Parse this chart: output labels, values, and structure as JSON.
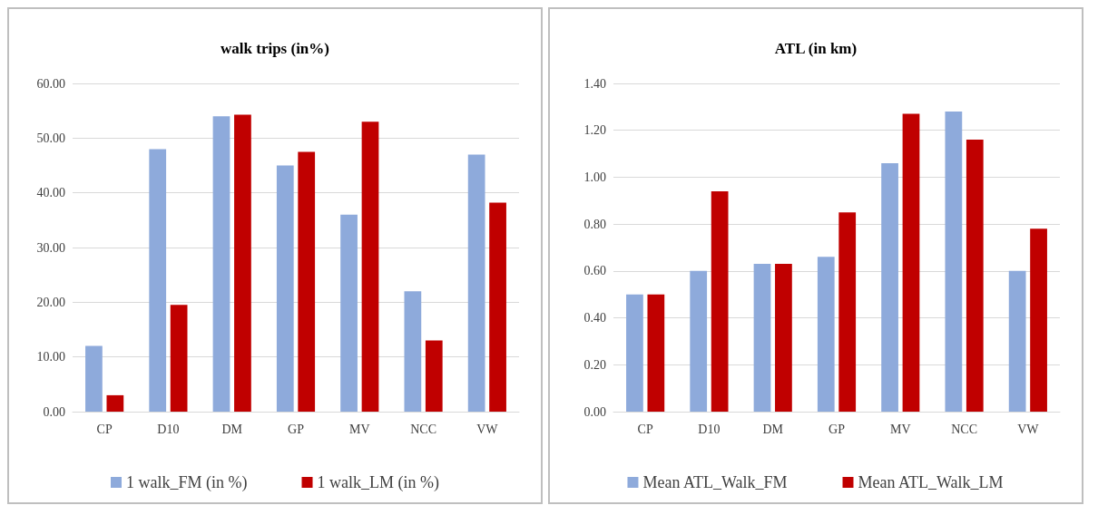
{
  "chart_data": [
    {
      "type": "bar",
      "title": "walk trips (in%)",
      "categories": [
        "CP",
        "D10",
        "DM",
        "GP",
        "MV",
        "NCC",
        "VW"
      ],
      "series": [
        {
          "name": "1 walk_FM (in %)",
          "color": "#8eaadb",
          "values": [
            12,
            48,
            54,
            45,
            36,
            22,
            47
          ]
        },
        {
          "name": "1 walk_LM (in %)",
          "color": "#c00000",
          "values": [
            3,
            19.5,
            54.3,
            47.5,
            53,
            13,
            38.2
          ]
        }
      ],
      "ylim": [
        0,
        60
      ],
      "yticks": [
        {
          "value": 0,
          "label": "0.00"
        },
        {
          "value": 10,
          "label": "10.00"
        },
        {
          "value": 20,
          "label": "20.00"
        },
        {
          "value": 30,
          "label": "30.00"
        },
        {
          "value": 40,
          "label": "40.00"
        },
        {
          "value": 50,
          "label": "50.00"
        },
        {
          "value": 60,
          "label": "60.00"
        }
      ],
      "grid": "y",
      "legend": "bottom"
    },
    {
      "type": "bar",
      "title": "ATL (in km)",
      "categories": [
        "CP",
        "D10",
        "DM",
        "GP",
        "MV",
        "NCC",
        "VW"
      ],
      "series": [
        {
          "name": "Mean ATL_Walk_FM",
          "color": "#8eaadb",
          "values": [
            0.5,
            0.6,
            0.63,
            0.66,
            1.06,
            1.28,
            0.6
          ]
        },
        {
          "name": "Mean ATL_Walk_LM",
          "color": "#c00000",
          "values": [
            0.5,
            0.94,
            0.63,
            0.85,
            1.27,
            1.16,
            0.78
          ]
        }
      ],
      "ylim": [
        0,
        1.4
      ],
      "yticks": [
        {
          "value": 0,
          "label": "0.00"
        },
        {
          "value": 0.2,
          "label": "0.20"
        },
        {
          "value": 0.4,
          "label": "0.40"
        },
        {
          "value": 0.6,
          "label": "0.60"
        },
        {
          "value": 0.8,
          "label": "0.80"
        },
        {
          "value": 1,
          "label": "1.00"
        },
        {
          "value": 1.2,
          "label": "1.20"
        },
        {
          "value": 1.4,
          "label": "1.40"
        }
      ],
      "grid": "y",
      "legend": "bottom"
    }
  ]
}
